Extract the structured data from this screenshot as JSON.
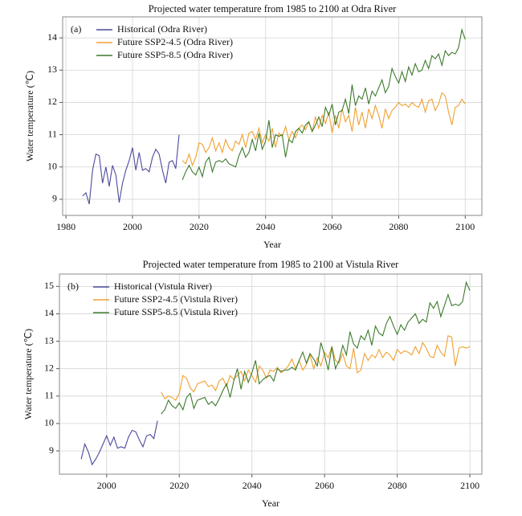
{
  "chart_data": [
    {
      "type": "line",
      "panel": "(a)",
      "title": "Projected water temperature from 1985 to 2100 at Odra River",
      "x_label": "Year",
      "y_label": "Water temperature (℃)",
      "xlim": [
        1979,
        2105
      ],
      "xticks": [
        1980,
        2000,
        2020,
        2040,
        2060,
        2080,
        2100
      ],
      "ylim": [
        8.5,
        14.65
      ],
      "yticks": [
        9,
        10,
        11,
        12,
        13,
        14
      ],
      "grid": true,
      "legend": "upper left",
      "series": [
        {
          "name": "Historical (Odra River)",
          "color": "#4a4a9c",
          "x": [
            1985,
            1986,
            1987,
            1988,
            1989,
            1990,
            1991,
            1992,
            1993,
            1994,
            1995,
            1996,
            1997,
            1998,
            1999,
            2000,
            2001,
            2002,
            2003,
            2004,
            2005,
            2006,
            2007,
            2008,
            2009,
            2010,
            2011,
            2012,
            2013,
            2014
          ],
          "values": [
            9.1,
            9.2,
            8.85,
            9.9,
            10.4,
            10.35,
            9.5,
            10.0,
            9.4,
            10.05,
            9.75,
            8.9,
            9.5,
            9.9,
            10.2,
            10.6,
            9.9,
            10.45,
            9.9,
            9.95,
            9.85,
            10.3,
            10.55,
            10.4,
            9.9,
            9.5,
            10.15,
            10.2,
            9.95,
            11.0
          ]
        },
        {
          "name": "Future SSP2-4.5 (Odra River)",
          "color": "#f0a030",
          "x": [
            2015,
            2016,
            2017,
            2018,
            2019,
            2020,
            2021,
            2022,
            2023,
            2024,
            2025,
            2026,
            2027,
            2028,
            2029,
            2030,
            2031,
            2032,
            2033,
            2034,
            2035,
            2036,
            2037,
            2038,
            2039,
            2040,
            2041,
            2042,
            2043,
            2044,
            2045,
            2046,
            2047,
            2048,
            2049,
            2050,
            2051,
            2052,
            2053,
            2054,
            2055,
            2056,
            2057,
            2058,
            2059,
            2060,
            2061,
            2062,
            2063,
            2064,
            2065,
            2066,
            2067,
            2068,
            2069,
            2070,
            2071,
            2072,
            2073,
            2074,
            2075,
            2076,
            2077,
            2078,
            2079,
            2080,
            2081,
            2082,
            2083,
            2084,
            2085,
            2086,
            2087,
            2088,
            2089,
            2090,
            2091,
            2092,
            2093,
            2094,
            2095,
            2096,
            2097,
            2098,
            2099,
            2100
          ],
          "values": [
            10.2,
            10.1,
            10.4,
            10.05,
            10.3,
            10.75,
            10.7,
            10.45,
            10.6,
            10.9,
            10.5,
            10.75,
            10.45,
            10.85,
            10.6,
            10.5,
            10.8,
            10.7,
            11.0,
            10.6,
            11.05,
            11.1,
            10.85,
            11.2,
            10.75,
            11.0,
            10.8,
            11.2,
            10.6,
            11.05,
            10.95,
            11.25,
            10.85,
            11.1,
            10.9,
            11.2,
            11.3,
            11.15,
            11.4,
            11.1,
            11.55,
            11.2,
            11.6,
            11.35,
            11.7,
            11.05,
            11.6,
            11.2,
            11.8,
            11.4,
            11.6,
            11.1,
            11.85,
            11.3,
            11.7,
            11.2,
            11.8,
            11.5,
            11.9,
            11.6,
            11.2,
            11.8,
            11.5,
            11.75,
            11.85,
            12.0,
            11.9,
            11.95,
            11.85,
            12.0,
            11.9,
            11.85,
            12.1,
            11.7,
            12.05,
            12.1,
            11.75,
            11.95,
            12.3,
            12.2,
            11.7,
            11.3,
            11.85,
            11.9,
            12.1,
            11.95
          ]
        },
        {
          "name": "Future SSP5-8.5 (Odra River)",
          "color": "#3d7a2c",
          "x": [
            2015,
            2016,
            2017,
            2018,
            2019,
            2020,
            2021,
            2022,
            2023,
            2024,
            2025,
            2026,
            2027,
            2028,
            2029,
            2030,
            2031,
            2032,
            2033,
            2034,
            2035,
            2036,
            2037,
            2038,
            2039,
            2040,
            2041,
            2042,
            2043,
            2044,
            2045,
            2046,
            2047,
            2048,
            2049,
            2050,
            2051,
            2052,
            2053,
            2054,
            2055,
            2056,
            2057,
            2058,
            2059,
            2060,
            2061,
            2062,
            2063,
            2064,
            2065,
            2066,
            2067,
            2068,
            2069,
            2070,
            2071,
            2072,
            2073,
            2074,
            2075,
            2076,
            2077,
            2078,
            2079,
            2080,
            2081,
            2082,
            2083,
            2084,
            2085,
            2086,
            2087,
            2088,
            2089,
            2090,
            2091,
            2092,
            2093,
            2094,
            2095,
            2096,
            2097,
            2098,
            2099,
            2100
          ],
          "values": [
            9.6,
            9.85,
            10.05,
            9.85,
            9.75,
            10.0,
            9.7,
            10.15,
            10.3,
            9.85,
            10.15,
            10.2,
            10.15,
            10.25,
            10.1,
            10.05,
            10.0,
            10.35,
            10.6,
            10.3,
            10.45,
            10.85,
            10.5,
            11.05,
            10.55,
            10.8,
            11.45,
            10.6,
            11.0,
            10.95,
            11.0,
            10.3,
            10.85,
            10.75,
            11.1,
            11.2,
            11.05,
            11.3,
            11.4,
            11.1,
            11.3,
            11.55,
            11.25,
            11.85,
            11.6,
            11.95,
            11.3,
            11.7,
            11.75,
            12.1,
            11.65,
            12.55,
            11.9,
            12.2,
            12.1,
            12.45,
            11.95,
            12.35,
            12.2,
            12.45,
            12.7,
            12.3,
            12.5,
            13.05,
            12.8,
            12.6,
            12.95,
            12.65,
            13.1,
            12.85,
            13.2,
            12.95,
            13.0,
            13.3,
            13.05,
            13.45,
            13.35,
            13.5,
            13.15,
            13.6,
            13.45,
            13.55,
            13.5,
            13.7,
            14.25,
            13.95
          ]
        }
      ]
    },
    {
      "type": "line",
      "panel": "(b)",
      "title": "Projected water temperature from 1985 to 2100 at Vistula River",
      "x_label": "Year",
      "y_label": "Water temperature (℃)",
      "xlim": [
        1987,
        2103.3
      ],
      "xticks": [
        2000,
        2020,
        2040,
        2060,
        2080,
        2100
      ],
      "ylim": [
        8.15,
        15.45
      ],
      "yticks": [
        9,
        10,
        11,
        12,
        13,
        14,
        15
      ],
      "grid": true,
      "legend": "upper left",
      "series": [
        {
          "name": "Historical (Vistula River)",
          "color": "#4a4a9c",
          "x": [
            1993,
            1994,
            1995,
            1996,
            1997,
            1998,
            1999,
            2000,
            2001,
            2002,
            2003,
            2004,
            2005,
            2006,
            2007,
            2008,
            2009,
            2010,
            2011,
            2012,
            2013,
            2014
          ],
          "values": [
            8.7,
            9.25,
            8.95,
            8.5,
            8.7,
            8.95,
            9.25,
            9.55,
            9.2,
            9.5,
            9.1,
            9.15,
            9.1,
            9.5,
            9.75,
            9.7,
            9.4,
            9.15,
            9.55,
            9.6,
            9.45,
            10.1
          ]
        },
        {
          "name": "Future SSP2-4.5 (Vistula River)",
          "color": "#f0a030",
          "x": [
            2015,
            2016,
            2017,
            2018,
            2019,
            2020,
            2021,
            2022,
            2023,
            2024,
            2025,
            2026,
            2027,
            2028,
            2029,
            2030,
            2031,
            2032,
            2033,
            2034,
            2035,
            2036,
            2037,
            2038,
            2039,
            2040,
            2041,
            2042,
            2043,
            2044,
            2045,
            2046,
            2047,
            2048,
            2049,
            2050,
            2051,
            2052,
            2053,
            2054,
            2055,
            2056,
            2057,
            2058,
            2059,
            2060,
            2061,
            2062,
            2063,
            2064,
            2065,
            2066,
            2067,
            2068,
            2069,
            2070,
            2071,
            2072,
            2073,
            2074,
            2075,
            2076,
            2077,
            2078,
            2079,
            2080,
            2081,
            2082,
            2083,
            2084,
            2085,
            2086,
            2087,
            2088,
            2089,
            2090,
            2091,
            2092,
            2093,
            2094,
            2095,
            2096,
            2097,
            2098,
            2099,
            2100
          ],
          "values": [
            11.15,
            10.9,
            11.0,
            10.95,
            10.85,
            11.1,
            11.75,
            11.65,
            11.3,
            11.15,
            11.45,
            11.5,
            11.55,
            11.35,
            11.4,
            11.2,
            11.55,
            11.65,
            11.35,
            11.75,
            11.6,
            11.75,
            11.9,
            11.55,
            11.95,
            11.75,
            11.5,
            12.1,
            11.95,
            11.65,
            11.95,
            11.9,
            12.05,
            11.85,
            11.95,
            12.1,
            12.35,
            12.0,
            12.3,
            11.95,
            12.15,
            12.5,
            12.0,
            12.4,
            12.1,
            12.6,
            12.4,
            12.8,
            12.3,
            12.2,
            12.55,
            12.1,
            12.0,
            12.75,
            11.85,
            11.95,
            12.55,
            12.3,
            12.5,
            12.4,
            12.7,
            12.4,
            12.6,
            12.5,
            12.3,
            12.7,
            12.55,
            12.65,
            12.6,
            12.5,
            12.8,
            12.55,
            12.95,
            12.75,
            12.45,
            12.4,
            12.85,
            12.6,
            12.45,
            13.2,
            13.15,
            12.1,
            12.75,
            12.8,
            12.75,
            12.8
          ]
        },
        {
          "name": "Future SSP5-8.5 (Vistula River)",
          "color": "#3d7a2c",
          "x": [
            2015,
            2016,
            2017,
            2018,
            2019,
            2020,
            2021,
            2022,
            2023,
            2024,
            2025,
            2026,
            2027,
            2028,
            2029,
            2030,
            2031,
            2032,
            2033,
            2034,
            2035,
            2036,
            2037,
            2038,
            2039,
            2040,
            2041,
            2042,
            2043,
            2044,
            2045,
            2046,
            2047,
            2048,
            2049,
            2050,
            2051,
            2052,
            2053,
            2054,
            2055,
            2056,
            2057,
            2058,
            2059,
            2060,
            2061,
            2062,
            2063,
            2064,
            2065,
            2066,
            2067,
            2068,
            2069,
            2070,
            2071,
            2072,
            2073,
            2074,
            2075,
            2076,
            2077,
            2078,
            2079,
            2080,
            2081,
            2082,
            2083,
            2084,
            2085,
            2086,
            2087,
            2088,
            2089,
            2090,
            2091,
            2092,
            2093,
            2094,
            2095,
            2096,
            2097,
            2098,
            2099,
            2100
          ],
          "values": [
            10.35,
            10.5,
            10.85,
            10.65,
            10.55,
            10.75,
            10.5,
            10.95,
            11.1,
            10.55,
            10.85,
            10.9,
            10.95,
            10.7,
            10.8,
            10.65,
            10.9,
            11.2,
            11.45,
            10.95,
            11.55,
            12.0,
            11.25,
            11.9,
            11.5,
            11.85,
            12.3,
            11.45,
            11.6,
            11.7,
            11.75,
            11.55,
            12.0,
            11.9,
            11.95,
            11.95,
            12.05,
            11.95,
            12.3,
            12.6,
            12.2,
            12.55,
            12.35,
            12.1,
            12.95,
            12.5,
            11.95,
            12.8,
            12.0,
            12.3,
            12.85,
            12.5,
            13.35,
            12.9,
            12.75,
            13.2,
            13.05,
            13.4,
            12.85,
            13.55,
            13.3,
            13.2,
            13.65,
            13.9,
            13.55,
            13.25,
            13.6,
            13.4,
            13.7,
            13.85,
            14.0,
            13.65,
            13.8,
            13.7,
            14.4,
            14.2,
            14.45,
            13.9,
            14.3,
            14.7,
            14.3,
            14.35,
            14.3,
            14.45,
            15.15,
            14.85
          ]
        }
      ]
    }
  ]
}
